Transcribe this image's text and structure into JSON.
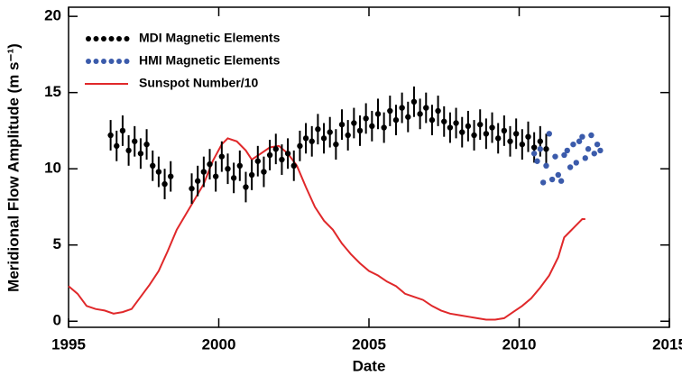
{
  "chart_data": {
    "type": "scatter",
    "xlabel": "Date",
    "ylabel": "Meridional Flow Amplitude (m s⁻¹)",
    "xlim": [
      1995,
      2015
    ],
    "xticks": [
      1995,
      2000,
      2005,
      2010,
      2015
    ],
    "ylim": [
      -0.4,
      20.6
    ],
    "yticks": [
      0,
      5,
      10,
      15,
      20
    ],
    "legend": "upper left",
    "series": [
      {
        "name": "MDI Magnetic Elements",
        "color": "#000000",
        "mode": "markers",
        "yerr": 1.0,
        "x": [
          1996.4,
          1996.6,
          1996.8,
          1997.0,
          1997.2,
          1997.4,
          1997.6,
          1997.8,
          1998.0,
          1998.2,
          1998.4,
          1999.1,
          1999.3,
          1999.5,
          1999.7,
          1999.9,
          2000.1,
          2000.3,
          2000.5,
          2000.7,
          2000.9,
          2001.1,
          2001.3,
          2001.5,
          2001.7,
          2001.9,
          2002.1,
          2002.3,
          2002.5,
          2002.7,
          2002.9,
          2003.1,
          2003.3,
          2003.5,
          2003.7,
          2003.9,
          2004.1,
          2004.3,
          2004.5,
          2004.7,
          2004.9,
          2005.1,
          2005.3,
          2005.5,
          2005.7,
          2005.9,
          2006.1,
          2006.3,
          2006.5,
          2006.7,
          2006.9,
          2007.1,
          2007.3,
          2007.5,
          2007.7,
          2007.9,
          2008.1,
          2008.3,
          2008.5,
          2008.7,
          2008.9,
          2009.1,
          2009.3,
          2009.5,
          2009.7,
          2009.9,
          2010.1,
          2010.3,
          2010.5,
          2010.7,
          2010.9
        ],
        "values": [
          12.2,
          11.5,
          12.5,
          11.2,
          11.8,
          11.0,
          11.6,
          10.2,
          9.8,
          9.0,
          9.5,
          8.7,
          9.2,
          9.8,
          10.3,
          9.5,
          10.8,
          10.0,
          9.4,
          10.2,
          8.8,
          9.6,
          10.5,
          9.8,
          10.9,
          11.3,
          10.6,
          11.0,
          10.2,
          11.5,
          12.0,
          11.8,
          12.6,
          12.0,
          12.4,
          11.6,
          12.9,
          12.2,
          13.0,
          12.5,
          13.3,
          12.8,
          13.6,
          12.7,
          13.8,
          13.2,
          14.0,
          13.4,
          14.4,
          13.6,
          14.0,
          13.2,
          13.8,
          13.1,
          12.7,
          13.0,
          12.4,
          12.8,
          12.2,
          12.9,
          12.3,
          12.7,
          12.0,
          12.5,
          11.8,
          12.3,
          11.6,
          12.1,
          11.4,
          11.8,
          11.3
        ]
      },
      {
        "name": "HMI Magnetic Elements",
        "color": "#3b5bab",
        "mode": "markers",
        "x": [
          2010.5,
          2010.6,
          2010.7,
          2010.8,
          2010.9,
          2011.0,
          2011.1,
          2011.2,
          2011.3,
          2011.4,
          2011.5,
          2011.6,
          2011.7,
          2011.8,
          2011.9,
          2012.0,
          2012.1,
          2012.2,
          2012.3,
          2012.4,
          2012.5,
          2012.6,
          2012.7
        ],
        "values": [
          11.0,
          10.5,
          11.3,
          9.1,
          10.2,
          12.3,
          9.3,
          10.8,
          9.6,
          9.2,
          10.9,
          11.2,
          10.1,
          11.6,
          10.4,
          11.8,
          12.1,
          10.7,
          11.3,
          12.2,
          11.0,
          11.6,
          11.2
        ]
      },
      {
        "name": "Sunspot Number/10",
        "color": "#e0282a",
        "mode": "line",
        "x": [
          1995.0,
          1995.3,
          1995.6,
          1995.9,
          1996.2,
          1996.5,
          1996.8,
          1997.1,
          1997.4,
          1997.7,
          1998.0,
          1998.3,
          1998.6,
          1998.9,
          1999.2,
          1999.5,
          1999.8,
          2000.1,
          2000.3,
          2000.6,
          2000.9,
          2001.1,
          2001.4,
          2001.7,
          2002.0,
          2002.3,
          2002.6,
          2002.9,
          2003.2,
          2003.5,
          2003.8,
          2004.1,
          2004.4,
          2004.7,
          2005.0,
          2005.3,
          2005.6,
          2005.9,
          2006.2,
          2006.5,
          2006.8,
          2007.1,
          2007.4,
          2007.7,
          2008.0,
          2008.3,
          2008.6,
          2008.9,
          2009.2,
          2009.5,
          2009.8,
          2010.1,
          2010.4,
          2010.7,
          2011.0,
          2011.3,
          2011.5,
          2011.7,
          2011.9,
          2012.1,
          2012.2
        ],
        "values": [
          2.3,
          1.8,
          1.0,
          0.8,
          0.7,
          0.5,
          0.6,
          0.8,
          1.6,
          2.4,
          3.3,
          4.6,
          6.0,
          7.0,
          8.0,
          9.0,
          10.5,
          11.6,
          12.0,
          11.8,
          11.2,
          10.6,
          11.0,
          11.4,
          11.5,
          11.0,
          10.2,
          8.8,
          7.5,
          6.6,
          6.0,
          5.1,
          4.4,
          3.8,
          3.3,
          3.0,
          2.6,
          2.3,
          1.8,
          1.6,
          1.4,
          1.0,
          0.7,
          0.5,
          0.4,
          0.3,
          0.2,
          0.1,
          0.1,
          0.2,
          0.6,
          1.0,
          1.5,
          2.2,
          3.0,
          4.2,
          5.5,
          5.9,
          6.3,
          6.7,
          6.7
        ]
      }
    ]
  }
}
